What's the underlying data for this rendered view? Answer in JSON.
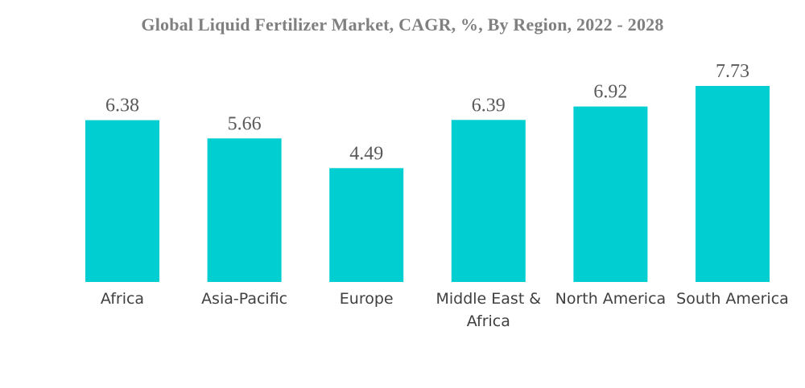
{
  "chart_data": {
    "type": "bar",
    "title": "Global Liquid Fertilizer Market, CAGR, %, By Region, 2022 - 2028",
    "categories": [
      "Africa",
      "Asia-Pacific",
      "Europe",
      "Middle East & Africa",
      "North America",
      "South America"
    ],
    "category_lines": [
      [
        "Africa"
      ],
      [
        "Asia-Pacific"
      ],
      [
        "Europe"
      ],
      [
        "Middle East &",
        "Africa"
      ],
      [
        "North America"
      ],
      [
        "South America"
      ]
    ],
    "values": [
      6.38,
      5.66,
      4.49,
      6.39,
      6.92,
      7.73
    ],
    "value_labels": [
      "6.38",
      "5.66",
      "4.49",
      "6.39",
      "6.92",
      "7.73"
    ],
    "xlabel": "",
    "ylabel": "",
    "ylim": [
      0,
      7.73
    ],
    "grid": false,
    "legend": "none",
    "bar_color": "#00CED1"
  }
}
